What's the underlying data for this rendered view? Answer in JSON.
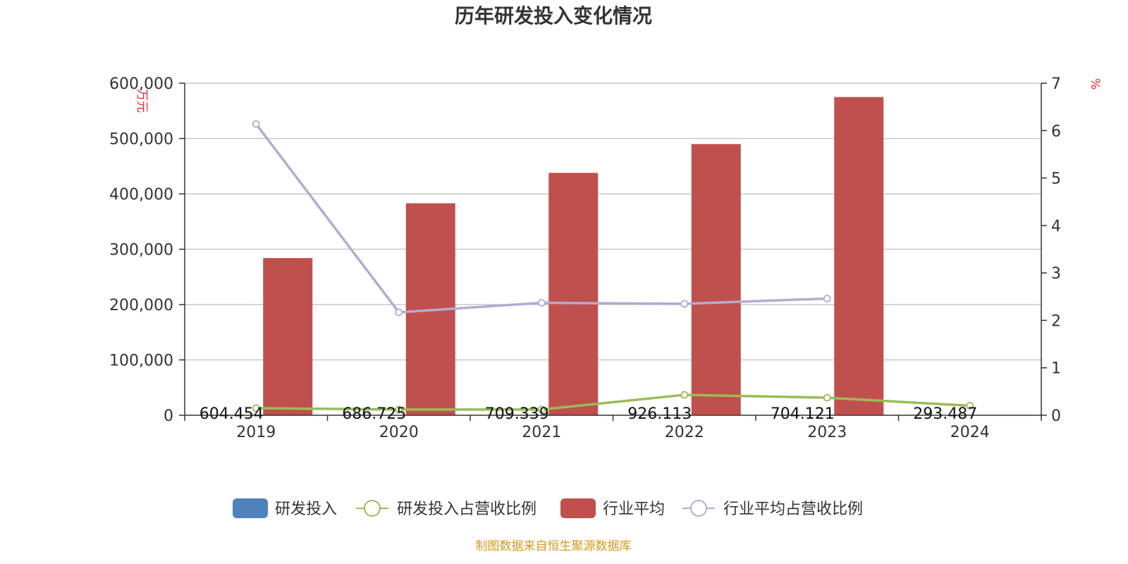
{
  "chart_data": {
    "type": "bar",
    "title": "历年研发投入变化情况",
    "categories": [
      "2019",
      "2020",
      "2021",
      "2022",
      "2023",
      "2024"
    ],
    "y_left": {
      "label": "万元",
      "min": 0,
      "max": 600000,
      "ticks": [
        "0",
        "100,000",
        "200,000",
        "300,000",
        "400,000",
        "500,000",
        "600,000"
      ]
    },
    "y_right": {
      "label": "%",
      "min": 0,
      "max": 7,
      "ticks": [
        "0",
        "1",
        "2",
        "3",
        "4",
        "5",
        "6",
        "7"
      ]
    },
    "grid": true,
    "legend_position": "bottom",
    "series": [
      {
        "name": "研发投入",
        "kind": "bar",
        "axis": "left",
        "color": "#4f81bd",
        "values": [
          604.454,
          686.725,
          709.339,
          926.113,
          704.121,
          293.487
        ],
        "labels": [
          "604.454",
          "686.725",
          "709.339",
          "926.113",
          "704.121",
          "293.487"
        ]
      },
      {
        "name": "研发投入占营收比例",
        "kind": "line",
        "axis": "right",
        "color": "#9bbb59",
        "values": [
          0.15,
          0.12,
          0.12,
          0.43,
          0.37,
          0.2
        ]
      },
      {
        "name": "行业平均",
        "kind": "bar",
        "axis": "left",
        "color": "#c0504d",
        "values": [
          284000,
          383000,
          438000,
          490000,
          575000,
          null
        ]
      },
      {
        "name": "行业平均占营收比例",
        "kind": "line",
        "axis": "right",
        "color": "#b7a9d1",
        "values": [
          6.14,
          2.17,
          2.37,
          2.35,
          2.46,
          null
        ]
      }
    ]
  },
  "source": "制图数据来自恒生聚源数据库"
}
